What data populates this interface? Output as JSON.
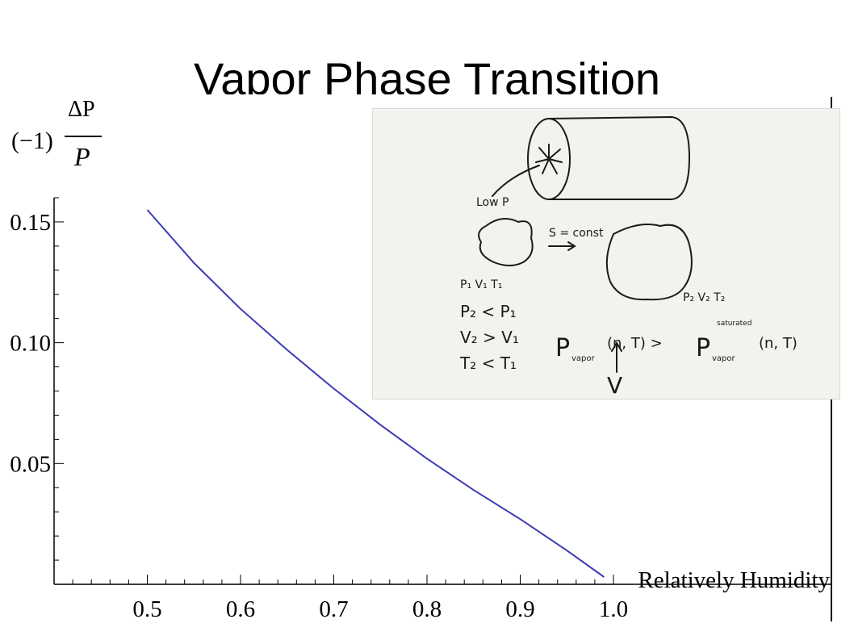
{
  "slide": {
    "title": "Vapor Phase Transition"
  },
  "chart_data": {
    "type": "line",
    "title": "",
    "ylabel": {
      "prefix": "(−1)",
      "numerator": "ΔP",
      "denominator": "P"
    },
    "xlabel": "Relatively Humidity",
    "xlim": [
      0.4,
      1.0
    ],
    "ylim": [
      0.0,
      0.16
    ],
    "xticks": [
      0.5,
      0.6,
      0.7,
      0.8,
      0.9,
      1.0
    ],
    "xtick_labels": [
      "0.5",
      "0.6",
      "0.7",
      "0.8",
      "0.9",
      "1.0"
    ],
    "yticks": [
      0.05,
      0.1,
      0.15
    ],
    "ytick_labels": [
      "0.05",
      "0.10",
      "0.15"
    ],
    "grid": false,
    "series": [
      {
        "color": "#3b3bb3",
        "x": [
          0.5,
          0.55,
          0.6,
          0.65,
          0.7,
          0.75,
          0.8,
          0.85,
          0.9,
          0.95,
          0.99
        ],
        "y": [
          0.155,
          0.133,
          0.114,
          0.097,
          0.081,
          0.066,
          0.052,
          0.039,
          0.027,
          0.014,
          0.003
        ]
      }
    ]
  },
  "inset_photo": {
    "description_labels": {
      "low_p": "Low P",
      "s_const": "S = const",
      "state1": "P₁ V₁ T₁",
      "state2": "P₂ V₂ T₂",
      "rel1": "P₂ < P₁",
      "rel2": "V₂ > V₁",
      "rel3": "T₂ < T₁",
      "pv_left": "P",
      "pv_left_sub": "vapor",
      "pv_mid": "(n, T) >",
      "pv_right": "P",
      "pv_right_sup": "saturated",
      "pv_right_sub": "vapor",
      "pv_end": "(n, T)",
      "arrow_mark": "V"
    }
  }
}
